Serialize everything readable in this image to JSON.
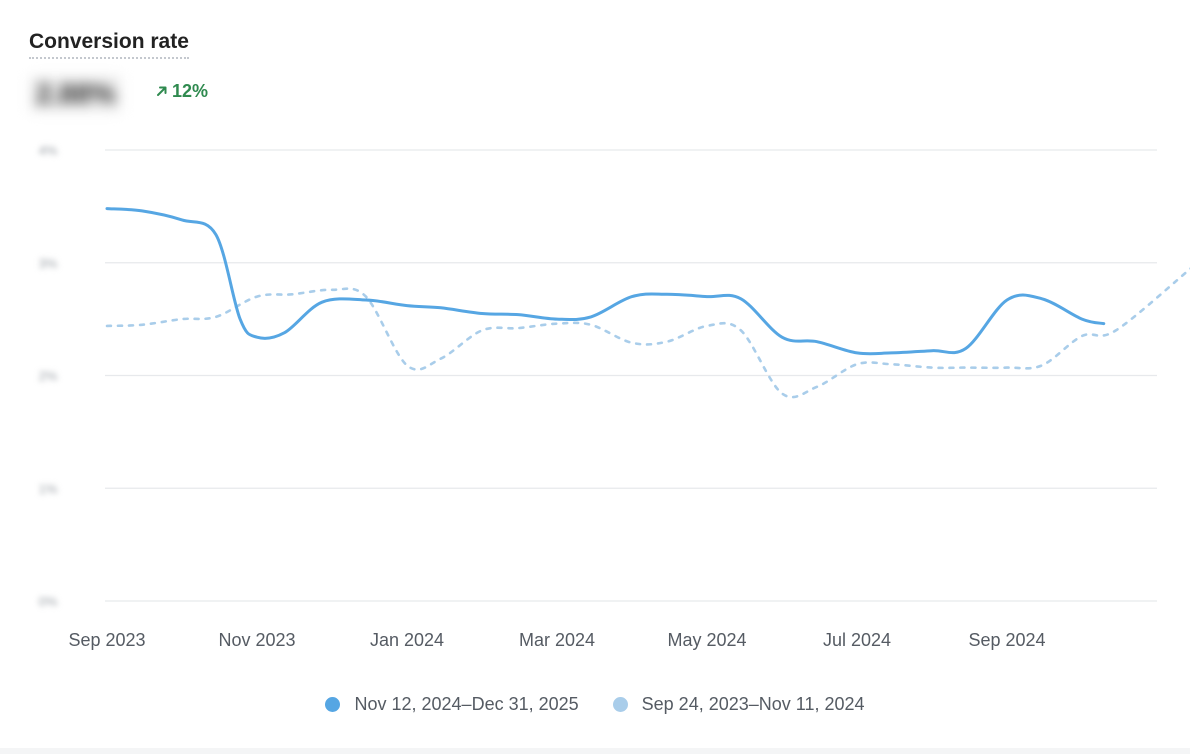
{
  "card": {
    "title": "Conversion rate",
    "value": "2.88%",
    "change": "12%",
    "change_icon": "arrow-up-right-icon"
  },
  "colors": {
    "current": "#56a6e3",
    "previous": "#a9cdea",
    "grid": "#e7e9ec",
    "positive": "#2f8a4f"
  },
  "chart_data": {
    "type": "line",
    "x": [
      "2023-09",
      "2023-10",
      "2023-11",
      "2023-12",
      "2024-01",
      "2024-02",
      "2024-03",
      "2024-04",
      "2024-05",
      "2024-06",
      "2024-07",
      "2024-08",
      "2024-09",
      "2024-10",
      "2024-11"
    ],
    "x_tick_labels": [
      "Sep 2023",
      "Nov 2023",
      "Jan 2024",
      "Mar 2024",
      "May 2024",
      "Jul 2024",
      "Sep 2024"
    ],
    "y_tick_labels": [
      "4%",
      "3%",
      "2%",
      "1%",
      "0%"
    ],
    "ylim": [
      0,
      4
    ],
    "grid": true,
    "legend_position": "bottom",
    "series": [
      {
        "name": "Nov 12, 2024–Dec 31, 2025",
        "style": "solid",
        "points": [
          [
            "2023-09-01",
            3.48
          ],
          [
            "2023-09-15",
            3.46
          ],
          [
            "2023-10-01",
            3.38
          ],
          [
            "2023-10-15",
            3.25
          ],
          [
            "2023-10-25",
            2.5
          ],
          [
            "2023-11-01",
            2.34
          ],
          [
            "2023-11-12",
            2.38
          ],
          [
            "2023-11-27",
            2.65
          ],
          [
            "2023-12-15",
            2.67
          ],
          [
            "2024-01-01",
            2.62
          ],
          [
            "2024-01-15",
            2.6
          ],
          [
            "2024-02-01",
            2.55
          ],
          [
            "2024-02-15",
            2.54
          ],
          [
            "2024-03-01",
            2.5
          ],
          [
            "2024-03-15",
            2.52
          ],
          [
            "2024-04-01",
            2.7
          ],
          [
            "2024-04-15",
            2.72
          ],
          [
            "2024-05-01",
            2.7
          ],
          [
            "2024-05-15",
            2.68
          ],
          [
            "2024-06-01",
            2.34
          ],
          [
            "2024-06-15",
            2.3
          ],
          [
            "2024-07-01",
            2.2
          ],
          [
            "2024-07-15",
            2.2
          ],
          [
            "2024-08-01",
            2.22
          ],
          [
            "2024-08-15",
            2.24
          ],
          [
            "2024-09-01",
            2.67
          ],
          [
            "2024-09-15",
            2.68
          ],
          [
            "2024-10-01",
            2.5
          ],
          [
            "2024-10-10",
            2.46
          ]
        ]
      },
      {
        "name": "Sep 24, 2023–Nov 11, 2024",
        "style": "dashed",
        "points": [
          [
            "2023-09-01",
            2.44
          ],
          [
            "2023-09-15",
            2.45
          ],
          [
            "2023-10-01",
            2.5
          ],
          [
            "2023-10-15",
            2.52
          ],
          [
            "2023-11-01",
            2.7
          ],
          [
            "2023-11-15",
            2.72
          ],
          [
            "2023-12-01",
            2.76
          ],
          [
            "2023-12-15",
            2.7
          ],
          [
            "2024-01-01",
            2.09
          ],
          [
            "2024-01-15",
            2.15
          ],
          [
            "2024-02-01",
            2.4
          ],
          [
            "2024-02-15",
            2.42
          ],
          [
            "2024-03-01",
            2.46
          ],
          [
            "2024-03-15",
            2.45
          ],
          [
            "2024-04-01",
            2.29
          ],
          [
            "2024-04-15",
            2.3
          ],
          [
            "2024-05-01",
            2.44
          ],
          [
            "2024-05-15",
            2.4
          ],
          [
            "2024-06-01",
            1.84
          ],
          [
            "2024-06-15",
            1.9
          ],
          [
            "2024-07-01",
            2.1
          ],
          [
            "2024-07-15",
            2.1
          ],
          [
            "2024-08-01",
            2.07
          ],
          [
            "2024-08-15",
            2.07
          ],
          [
            "2024-09-01",
            2.07
          ],
          [
            "2024-09-15",
            2.09
          ],
          [
            "2024-10-01",
            2.35
          ],
          [
            "2024-10-15",
            2.4
          ],
          [
            "2024-11-15",
            2.96
          ]
        ]
      }
    ]
  }
}
